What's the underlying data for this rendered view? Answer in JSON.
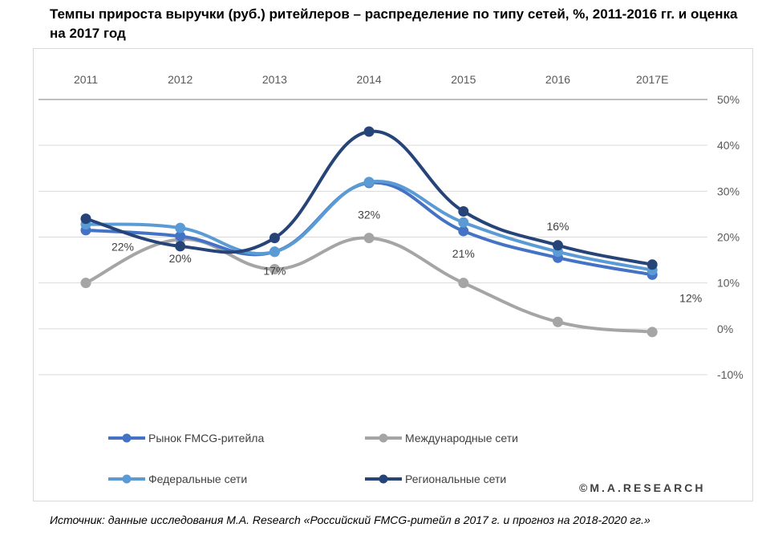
{
  "title": "Темпы прироста выручки (руб.) ритейлеров – распределение по типу сетей, %, 2011-2016 гг. и оценка на 2017 год",
  "source": "Источник: данные исследования M.A. Research «Российский FMCG-ритейл в 2017 г. и прогноз на 2018-2020 гг.»",
  "watermark": "©M.A.RESEARCH",
  "chart_data": {
    "type": "line",
    "categories": [
      "2011",
      "2012",
      "2013",
      "2014",
      "2015",
      "2016",
      "2017E"
    ],
    "ylim": [
      -10,
      50
    ],
    "yticks": [
      "50%",
      "40%",
      "30%",
      "20%",
      "10%",
      "0%",
      "-10%"
    ],
    "ytick_values": [
      50,
      40,
      30,
      20,
      10,
      0,
      -10
    ],
    "grid": true,
    "smooth": true,
    "legend_position": "bottom",
    "series": [
      {
        "name": "Рынок FMCG-ритейла",
        "color": "#4472c4",
        "values": [
          21.5,
          20.2,
          16.8,
          31.8,
          21.3,
          15.5,
          11.8
        ]
      },
      {
        "name": "Международные сети",
        "color": "#a5a5a5",
        "values": [
          10.0,
          19.5,
          13.0,
          19.8,
          10.0,
          1.5,
          -0.7
        ]
      },
      {
        "name": "Федеральные сети",
        "color": "#5b9bd5",
        "values": [
          22.8,
          22.0,
          16.8,
          32.0,
          23.2,
          16.8,
          12.8
        ]
      },
      {
        "name": "Региональные сети",
        "color": "#264478",
        "values": [
          24.0,
          18.0,
          19.8,
          43.0,
          25.6,
          18.2,
          14.0
        ]
      }
    ],
    "data_labels": [
      {
        "text": "22%",
        "x": "2011",
        "y": 17.0
      },
      {
        "text": "20%",
        "x": "2012",
        "y": 14.5
      },
      {
        "text": "17%",
        "x": "2013",
        "y": 11.8
      },
      {
        "text": "32%",
        "x": "2014",
        "y": 24.0
      },
      {
        "text": "21%",
        "x": "2015",
        "y": 15.5
      },
      {
        "text": "16%",
        "x": "2016",
        "y": 21.5
      },
      {
        "text": "12%",
        "x": "2017E",
        "y": 5.8
      }
    ]
  }
}
